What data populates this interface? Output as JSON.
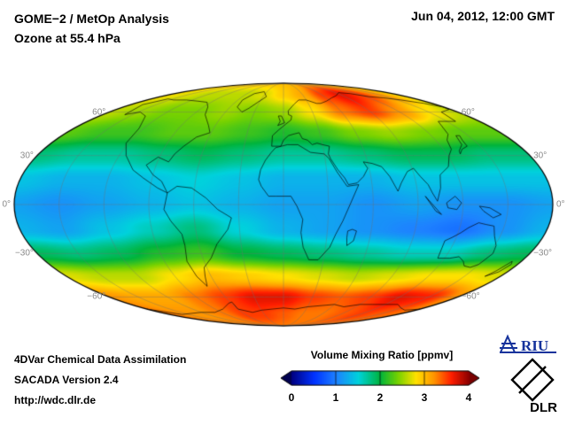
{
  "header": {
    "title_line1": "GOME−2 / MetOp Analysis",
    "title_line2": "Ozone at 55.4 hPa",
    "datetime": "Jun 04, 2012, 12:00 GMT"
  },
  "footer": {
    "line1": "4DVar Chemical Data Assimilation",
    "line2": "SACADA Version 2.4",
    "line3": "http://wdc.dlr.de"
  },
  "colorbar": {
    "title": "Volume Mixing Ratio [ppmv]",
    "ticks": [
      "0",
      "1",
      "2",
      "3",
      "4"
    ],
    "min": 0,
    "max": 4,
    "under": "#000050",
    "over": "#7a0000",
    "stops": [
      [
        0.0,
        "#000082"
      ],
      [
        0.5,
        "#0032ff"
      ],
      [
        1.0,
        "#1e82ff"
      ],
      [
        1.5,
        "#00d2dc"
      ],
      [
        2.0,
        "#00b43c"
      ],
      [
        2.4,
        "#78d200"
      ],
      [
        2.8,
        "#ffe100"
      ],
      [
        3.2,
        "#ff9600"
      ],
      [
        3.6,
        "#ff1e00"
      ],
      [
        4.0,
        "#8c0000"
      ]
    ]
  },
  "logos": {
    "riu": "RIU",
    "dlr": "DLR",
    "riu_color": "#16339c"
  },
  "map": {
    "lat_labels": [
      {
        "lat": 60,
        "text": "60°"
      },
      {
        "lat": 30,
        "text": "30°"
      },
      {
        "lat": 0,
        "text": "0°"
      },
      {
        "lat": -30,
        "text": "−30°"
      },
      {
        "lat": -60,
        "text": "−60°"
      }
    ],
    "graticule_lats": [
      -60,
      -30,
      0,
      30,
      60
    ],
    "graticule_lon_step": 30,
    "coastlines": [
      [
        [
          -166,
          66
        ],
        [
          -158,
          58
        ],
        [
          -148,
          60
        ],
        [
          -135,
          57
        ],
        [
          -124,
          48
        ],
        [
          -122,
          38
        ],
        [
          -115,
          30
        ],
        [
          -105,
          21
        ],
        [
          -96,
          16
        ],
        [
          -85,
          10
        ],
        [
          -78,
          7
        ],
        [
          -83,
          14
        ],
        [
          -90,
          18
        ],
        [
          -97,
          24
        ],
        [
          -91,
          29
        ],
        [
          -82,
          26
        ],
        [
          -80,
          31
        ],
        [
          -76,
          36
        ],
        [
          -70,
          42
        ],
        [
          -61,
          45
        ],
        [
          -66,
          50
        ],
        [
          -78,
          58
        ],
        [
          -85,
          64
        ],
        [
          -95,
          68
        ],
        [
          -110,
          69
        ],
        [
          -128,
          70
        ],
        [
          -145,
          70
        ],
        [
          -157,
          71
        ],
        [
          -166,
          66
        ]
      ],
      [
        [
          -43,
          60
        ],
        [
          -52,
          64
        ],
        [
          -54,
          70
        ],
        [
          -48,
          76
        ],
        [
          -35,
          78
        ],
        [
          -25,
          73
        ],
        [
          -32,
          68
        ],
        [
          -38,
          63
        ],
        [
          -43,
          60
        ]
      ],
      [
        [
          -78,
          7
        ],
        [
          -72,
          11
        ],
        [
          -62,
          10
        ],
        [
          -52,
          4
        ],
        [
          -44,
          -3
        ],
        [
          -35,
          -8
        ],
        [
          -38,
          -15
        ],
        [
          -47,
          -24
        ],
        [
          -54,
          -33
        ],
        [
          -62,
          -39
        ],
        [
          -65,
          -45
        ],
        [
          -69,
          -52
        ],
        [
          -72,
          -45
        ],
        [
          -73,
          -35
        ],
        [
          -70,
          -25
        ],
        [
          -70,
          -18
        ],
        [
          -76,
          -10
        ],
        [
          -80,
          -3
        ],
        [
          -78,
          7
        ]
      ],
      [
        [
          -6,
          35
        ],
        [
          3,
          37
        ],
        [
          11,
          37
        ],
        [
          20,
          32
        ],
        [
          30,
          31
        ],
        [
          33,
          28
        ],
        [
          37,
          20
        ],
        [
          43,
          11
        ],
        [
          51,
          12
        ],
        [
          45,
          1
        ],
        [
          40,
          -10
        ],
        [
          36,
          -18
        ],
        [
          33,
          -26
        ],
        [
          26,
          -34
        ],
        [
          19,
          -34
        ],
        [
          14,
          -26
        ],
        [
          12,
          -17
        ],
        [
          13,
          -9
        ],
        [
          9,
          -1
        ],
        [
          5,
          5
        ],
        [
          -5,
          5
        ],
        [
          -10,
          5
        ],
        [
          -15,
          11
        ],
        [
          -17,
          15
        ],
        [
          -16,
          21
        ],
        [
          -13,
          27
        ],
        [
          -9,
          32
        ],
        [
          -6,
          35
        ]
      ],
      [
        [
          -9,
          36
        ],
        [
          -9,
          43
        ],
        [
          -4,
          47
        ],
        [
          -1,
          49
        ],
        [
          2,
          51
        ],
        [
          7,
          54
        ],
        [
          8,
          57
        ],
        [
          5,
          58
        ],
        [
          5,
          61
        ],
        [
          12,
          66
        ],
        [
          20,
          70
        ],
        [
          30,
          70
        ],
        [
          40,
          67
        ],
        [
          45,
          67
        ],
        [
          55,
          69
        ],
        [
          68,
          72
        ],
        [
          80,
          74
        ],
        [
          95,
          77
        ],
        [
          110,
          76
        ],
        [
          125,
          73
        ],
        [
          140,
          72
        ],
        [
          155,
          70
        ],
        [
          170,
          67
        ],
        [
          179,
          64
        ],
        [
          178,
          62
        ],
        [
          163,
          60
        ],
        [
          158,
          53
        ],
        [
          142,
          53
        ],
        [
          135,
          44
        ],
        [
          129,
          40
        ],
        [
          126,
          34
        ],
        [
          121,
          30
        ],
        [
          116,
          23
        ],
        [
          108,
          18
        ],
        [
          106,
          10
        ],
        [
          103,
          2
        ],
        [
          100,
          7
        ],
        [
          98,
          12
        ],
        [
          94,
          17
        ],
        [
          91,
          22
        ],
        [
          86,
          20
        ],
        [
          80,
          13
        ],
        [
          77,
          8
        ],
        [
          73,
          17
        ],
        [
          69,
          23
        ],
        [
          63,
          25
        ],
        [
          57,
          26
        ],
        [
          59,
          22
        ],
        [
          55,
          17
        ],
        [
          50,
          13
        ],
        [
          44,
          12
        ],
        [
          42,
          16
        ],
        [
          38,
          21
        ],
        [
          34,
          28
        ],
        [
          33,
          31
        ],
        [
          35,
          36
        ],
        [
          30,
          37
        ],
        [
          26,
          38
        ],
        [
          22,
          37
        ],
        [
          19,
          40
        ],
        [
          15,
          41
        ],
        [
          13,
          45
        ],
        [
          8,
          44
        ],
        [
          4,
          43
        ],
        [
          0,
          40
        ],
        [
          -2,
          36
        ],
        [
          -9,
          36
        ]
      ],
      [
        [
          -5,
          50
        ],
        [
          -3,
          53
        ],
        [
          -5,
          57
        ],
        [
          -2,
          57
        ],
        [
          1,
          52
        ],
        [
          -5,
          50
        ]
      ],
      [
        [
          130,
          31
        ],
        [
          134,
          34
        ],
        [
          140,
          36
        ],
        [
          141,
          40
        ],
        [
          143,
          43
        ],
        [
          140,
          43
        ],
        [
          137,
          37
        ],
        [
          131,
          33
        ],
        [
          130,
          31
        ]
      ],
      [
        [
          95,
          5
        ],
        [
          102,
          -4
        ],
        [
          106,
          -6
        ],
        [
          95,
          5
        ]
      ],
      [
        [
          109,
          1
        ],
        [
          115,
          5
        ],
        [
          119,
          1
        ],
        [
          116,
          -3
        ],
        [
          110,
          -2
        ],
        [
          109,
          1
        ]
      ],
      [
        [
          131,
          -1
        ],
        [
          138,
          -2
        ],
        [
          146,
          -6
        ],
        [
          141,
          -8
        ],
        [
          134,
          -4
        ],
        [
          131,
          -1
        ]
      ],
      [
        [
          113,
          -22
        ],
        [
          115,
          -33
        ],
        [
          124,
          -33
        ],
        [
          130,
          -32
        ],
        [
          136,
          -35
        ],
        [
          140,
          -38
        ],
        [
          146,
          -39
        ],
        [
          150,
          -37
        ],
        [
          153,
          -30
        ],
        [
          151,
          -25
        ],
        [
          146,
          -19
        ],
        [
          143,
          -13
        ],
        [
          137,
          -12
        ],
        [
          132,
          -11
        ],
        [
          126,
          -14
        ],
        [
          122,
          -17
        ],
        [
          117,
          -20
        ],
        [
          113,
          -22
        ]
      ],
      [
        [
          44,
          -16
        ],
        [
          47,
          -15
        ],
        [
          50,
          -16
        ],
        [
          49,
          -22
        ],
        [
          45,
          -25
        ],
        [
          44,
          -20
        ],
        [
          44,
          -16
        ]
      ],
      [
        [
          167,
          -45
        ],
        [
          173,
          -42
        ],
        [
          175,
          -37
        ],
        [
          173,
          -35
        ],
        [
          170,
          -41
        ],
        [
          167,
          -45
        ]
      ],
      [
        [
          -180,
          -70
        ],
        [
          -160,
          -75
        ],
        [
          -140,
          -74
        ],
        [
          -120,
          -73
        ],
        [
          -100,
          -73
        ],
        [
          -80,
          -70
        ],
        [
          -63,
          -65
        ],
        [
          -58,
          -64
        ],
        [
          -60,
          -70
        ],
        [
          -45,
          -73
        ],
        [
          -30,
          -71
        ],
        [
          -15,
          -70
        ],
        [
          0,
          -69
        ],
        [
          15,
          -70
        ],
        [
          30,
          -68
        ],
        [
          45,
          -67
        ],
        [
          60,
          -66
        ],
        [
          75,
          -68
        ],
        [
          90,
          -66
        ],
        [
          105,
          -66
        ],
        [
          120,
          -66
        ],
        [
          135,
          -66
        ],
        [
          150,
          -69
        ],
        [
          165,
          -71
        ],
        [
          180,
          -70
        ]
      ]
    ]
  },
  "chart_data": {
    "type": "heatmap",
    "title": "GOME−2 / MetOp Analysis — Ozone at 55.4 hPa",
    "datetime": "Jun 04, 2012, 12:00 GMT",
    "projection": "mollweide",
    "colorbar_label": "Volume Mixing Ratio [ppmv]",
    "units": "ppmv",
    "value_range": [
      0,
      4
    ],
    "lats": [
      90,
      75,
      60,
      45,
      30,
      15,
      0,
      -15,
      -30,
      -45,
      -60,
      -75,
      -90
    ],
    "lons": [
      -180,
      -150,
      -120,
      -90,
      -60,
      -30,
      0,
      30,
      60,
      90,
      120,
      150,
      180
    ],
    "values": [
      [
        3.0,
        3.0,
        3.0,
        3.0,
        3.0,
        3.0,
        3.0,
        3.0,
        3.1,
        3.1,
        3.1,
        3.0,
        3.0
      ],
      [
        2.8,
        2.7,
        2.6,
        2.6,
        2.6,
        2.7,
        2.9,
        3.1,
        3.5,
        3.7,
        3.5,
        3.2,
        2.8
      ],
      [
        2.6,
        2.5,
        2.4,
        2.4,
        2.5,
        2.4,
        2.5,
        2.8,
        3.3,
        3.5,
        3.2,
        2.8,
        2.6
      ],
      [
        2.3,
        2.2,
        2.2,
        2.3,
        2.3,
        2.2,
        2.1,
        2.2,
        2.4,
        2.5,
        2.4,
        2.3,
        2.3
      ],
      [
        1.8,
        1.7,
        1.7,
        1.8,
        1.9,
        1.8,
        1.7,
        1.7,
        1.8,
        1.9,
        1.9,
        1.8,
        1.8
      ],
      [
        1.4,
        1.3,
        1.3,
        1.4,
        1.5,
        1.4,
        1.3,
        1.3,
        1.3,
        1.4,
        1.4,
        1.4,
        1.4
      ],
      [
        1.2,
        1.1,
        1.2,
        1.3,
        1.4,
        1.3,
        1.2,
        1.2,
        1.1,
        1.2,
        1.1,
        1.1,
        1.2
      ],
      [
        1.3,
        1.2,
        1.4,
        1.6,
        1.8,
        1.5,
        1.3,
        1.2,
        1.1,
        1.0,
        0.9,
        1.1,
        1.3
      ],
      [
        1.9,
        1.8,
        1.9,
        2.1,
        2.2,
        2.0,
        1.9,
        1.8,
        1.7,
        1.6,
        1.6,
        1.8,
        1.9
      ],
      [
        2.7,
        2.6,
        2.6,
        2.8,
        3.0,
        2.9,
        2.8,
        2.7,
        2.6,
        2.7,
        2.8,
        2.8,
        2.7
      ],
      [
        3.2,
        3.1,
        3.1,
        3.3,
        3.5,
        3.7,
        3.7,
        3.5,
        3.4,
        3.5,
        3.7,
        3.6,
        3.2
      ],
      [
        3.3,
        3.2,
        3.2,
        3.3,
        3.5,
        3.5,
        3.4,
        3.3,
        3.3,
        3.4,
        3.5,
        3.4,
        3.3
      ],
      [
        3.3,
        3.3,
        3.3,
        3.3,
        3.3,
        3.3,
        3.3,
        3.3,
        3.3,
        3.3,
        3.3,
        3.3,
        3.3
      ]
    ]
  }
}
